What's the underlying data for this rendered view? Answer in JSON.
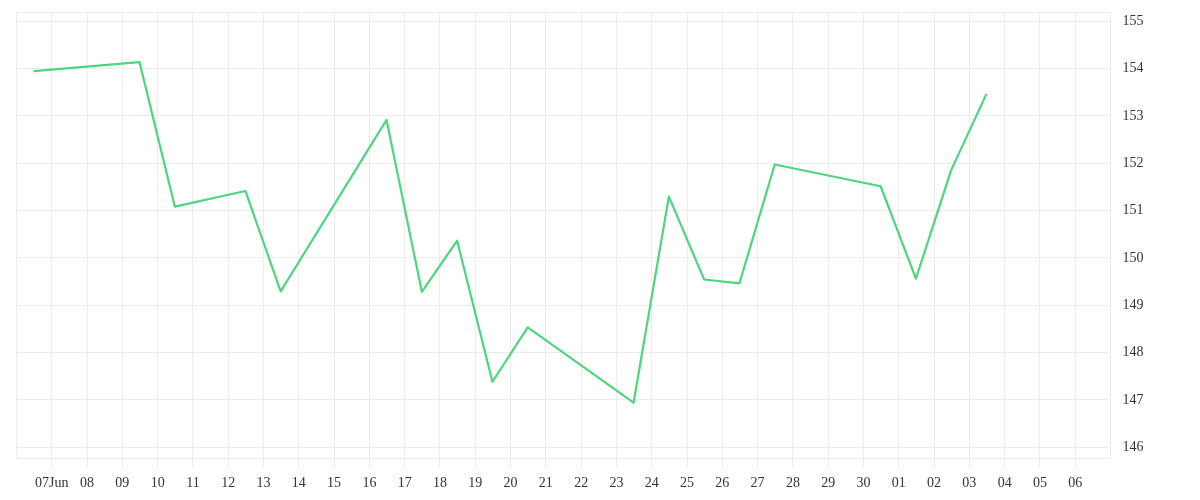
{
  "chart_data": {
    "type": "line",
    "x": [
      "--06-06T12:00",
      "--06-09T12:00",
      "--06-10T12:00",
      "--06-12T12:00",
      "--06-13T12:00",
      "--06-16T12:00",
      "--06-17T12:00",
      "--06-18T12:00",
      "--06-19T12:00",
      "--06-20T12:00",
      "--06-23T12:00",
      "--06-24T12:00",
      "--06-25T12:00",
      "--06-26T12:00",
      "--06-27T12:00",
      "--06-30T12:00",
      "--07-01T12:00",
      "--07-02T12:00",
      "--07-03T12:00"
    ],
    "series": [
      {
        "color": "#4cd67e",
        "values": [
          153.93,
          154.12,
          151.07,
          151.4,
          149.28,
          152.9,
          149.27,
          150.35,
          147.37,
          148.52,
          146.93,
          151.28,
          149.53,
          149.45,
          151.96,
          151.5,
          149.55,
          151.84,
          153.45
        ]
      }
    ],
    "xlim": [
      "--06-06",
      "--07-07"
    ],
    "xticks": [
      {
        "value": "--06-07",
        "label": "07Jun"
      },
      {
        "value": "--06-08",
        "label": "08"
      },
      {
        "value": "--06-09",
        "label": "09"
      },
      {
        "value": "--06-10",
        "label": "10"
      },
      {
        "value": "--06-11",
        "label": "11"
      },
      {
        "value": "--06-12",
        "label": "12"
      },
      {
        "value": "--06-13",
        "label": "13"
      },
      {
        "value": "--06-14",
        "label": "14"
      },
      {
        "value": "--06-15",
        "label": "15"
      },
      {
        "value": "--06-16",
        "label": "16"
      },
      {
        "value": "--06-17",
        "label": "17"
      },
      {
        "value": "--06-18",
        "label": "18"
      },
      {
        "value": "--06-19",
        "label": "19"
      },
      {
        "value": "--06-20",
        "label": "20"
      },
      {
        "value": "--06-21",
        "label": "21"
      },
      {
        "value": "--06-22",
        "label": "22"
      },
      {
        "value": "--06-23",
        "label": "23"
      },
      {
        "value": "--06-24",
        "label": "24"
      },
      {
        "value": "--06-25",
        "label": "25"
      },
      {
        "value": "--06-26",
        "label": "26"
      },
      {
        "value": "--06-27",
        "label": "27"
      },
      {
        "value": "--06-28",
        "label": "28"
      },
      {
        "value": "--06-29",
        "label": "29"
      },
      {
        "value": "--06-30",
        "label": "30"
      },
      {
        "value": "--07-01",
        "label": "01"
      },
      {
        "value": "--07-02",
        "label": "02"
      },
      {
        "value": "--07-03",
        "label": "03"
      },
      {
        "value": "--07-04",
        "label": "04"
      },
      {
        "value": "--07-05",
        "label": "05"
      },
      {
        "value": "--07-06",
        "label": "06"
      }
    ],
    "ylim": [
      145.76,
      155.18
    ],
    "yticks": [
      146,
      147,
      148,
      149,
      150,
      151,
      152,
      153,
      154,
      155
    ],
    "grid": true,
    "line_style": "solid",
    "marker": "none"
  }
}
